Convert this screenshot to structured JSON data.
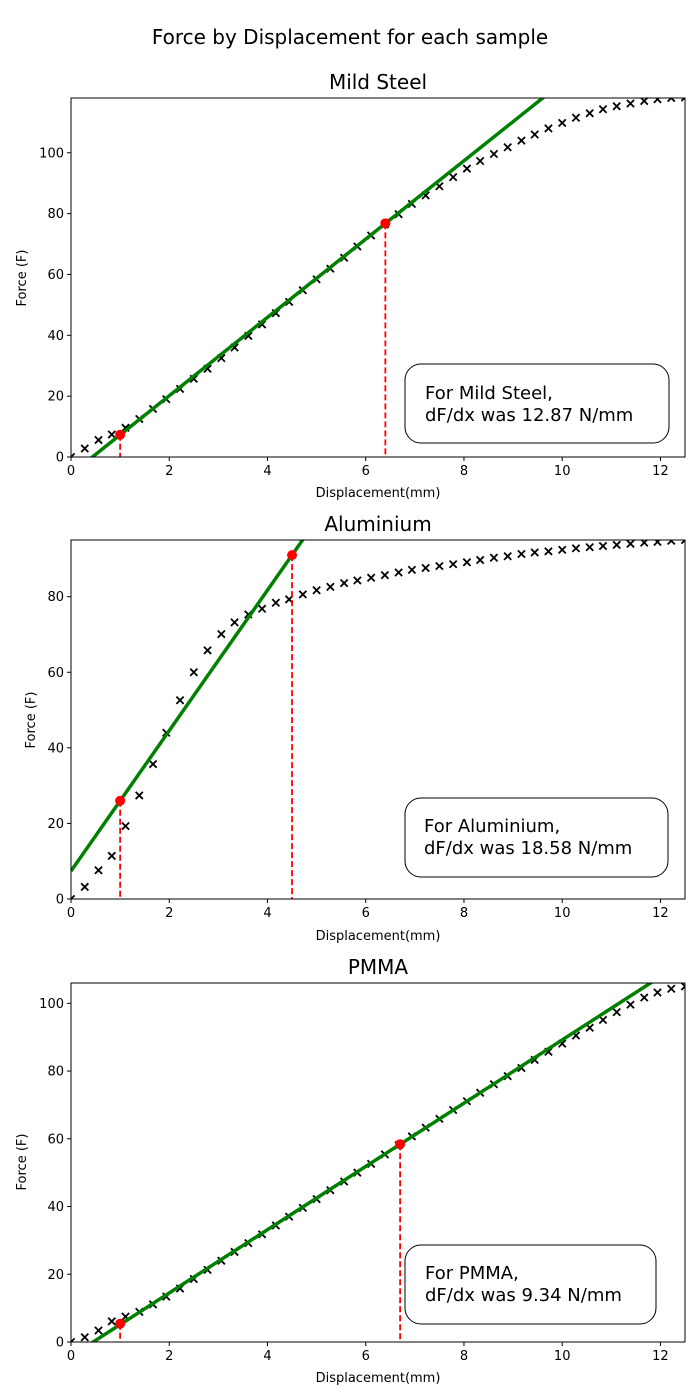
{
  "figure": {
    "suptitle": "Force by Displacement for each sample"
  },
  "chart_data": [
    {
      "type": "scatter",
      "title": "Mild Steel",
      "xlabel": "Displacement(mm)",
      "ylabel": "Force (F)",
      "xlim": [
        0,
        12.5
      ],
      "ylim": [
        0,
        118
      ],
      "xticks": [
        0,
        2,
        4,
        6,
        8,
        10,
        12
      ],
      "yticks": [
        0,
        20,
        40,
        60,
        80,
        100
      ],
      "grid": false,
      "annotation_lines": [
        "For Mild Steel,",
        "dF/dx was 12.87 N/mm"
      ],
      "colors": {
        "markers": "#000000",
        "fit_line": "#008000",
        "points": "#ff0000"
      },
      "series": [
        {
          "marker": "x",
          "x": [
            0.0,
            0.28,
            0.56,
            0.83,
            1.11,
            1.39,
            1.67,
            1.94,
            2.22,
            2.5,
            2.78,
            3.06,
            3.33,
            3.61,
            3.89,
            4.17,
            4.44,
            4.72,
            5.0,
            5.28,
            5.56,
            5.83,
            6.11,
            6.39,
            6.67,
            6.94,
            7.22,
            7.5,
            7.78,
            8.06,
            8.33,
            8.61,
            8.89,
            9.17,
            9.44,
            9.72,
            10.0,
            10.28,
            10.56,
            10.83,
            11.11,
            11.39,
            11.67,
            11.94,
            12.22,
            12.5
          ],
          "y": [
            0.0,
            2.8,
            5.6,
            7.4,
            9.6,
            12.5,
            15.8,
            19.0,
            22.4,
            25.7,
            29.0,
            32.5,
            36.0,
            39.8,
            43.6,
            47.3,
            51.0,
            54.8,
            58.4,
            61.9,
            65.5,
            69.2,
            72.8,
            76.4,
            79.8,
            83.2,
            86.0,
            89.0,
            92.0,
            94.8,
            97.3,
            99.6,
            101.8,
            104.0,
            106.0,
            108.0,
            109.8,
            111.5,
            113.0,
            114.3,
            115.3,
            116.2,
            117.0,
            117.6,
            118.0,
            118.2
          ]
        }
      ],
      "fit_line": {
        "slope": 12.87,
        "intercept": -5.6
      },
      "highlight_points": [
        {
          "x": 1.0,
          "y": 7.3
        },
        {
          "x": 6.4,
          "y": 76.8
        }
      ]
    },
    {
      "type": "scatter",
      "title": "Aluminium",
      "xlabel": "Displacement(mm)",
      "ylabel": "Force (F)",
      "xlim": [
        0,
        12.5
      ],
      "ylim": [
        0,
        95
      ],
      "xticks": [
        0,
        2,
        4,
        6,
        8,
        10,
        12
      ],
      "yticks": [
        0,
        20,
        40,
        60,
        80
      ],
      "grid": false,
      "annotation_lines": [
        "For Aluminium,",
        "dF/dx was 18.58 N/mm"
      ],
      "colors": {
        "markers": "#000000",
        "fit_line": "#008000",
        "points": "#ff0000"
      },
      "series": [
        {
          "marker": "x",
          "x": [
            0.0,
            0.28,
            0.56,
            0.83,
            1.11,
            1.39,
            1.67,
            1.94,
            2.22,
            2.5,
            2.78,
            3.06,
            3.33,
            3.61,
            3.89,
            4.17,
            4.44,
            4.72,
            5.0,
            5.28,
            5.56,
            5.83,
            6.11,
            6.39,
            6.67,
            6.94,
            7.22,
            7.5,
            7.78,
            8.06,
            8.33,
            8.61,
            8.89,
            9.17,
            9.44,
            9.72,
            10.0,
            10.28,
            10.56,
            10.83,
            11.11,
            11.39,
            11.67,
            11.94,
            12.22,
            12.5
          ],
          "y": [
            0.0,
            3.2,
            7.6,
            11.4,
            19.3,
            27.4,
            35.7,
            44.0,
            52.6,
            60.0,
            65.8,
            70.1,
            73.2,
            75.3,
            76.8,
            78.4,
            79.3,
            80.6,
            81.7,
            82.6,
            83.6,
            84.3,
            85.0,
            85.7,
            86.4,
            87.1,
            87.6,
            88.1,
            88.6,
            89.1,
            89.7,
            90.3,
            90.7,
            91.3,
            91.7,
            92.0,
            92.4,
            92.8,
            93.1,
            93.4,
            93.7,
            94.0,
            94.3,
            94.5,
            94.8,
            95.0
          ]
        }
      ],
      "fit_line": {
        "slope": 18.58,
        "intercept": 7.4
      },
      "highlight_points": [
        {
          "x": 1.0,
          "y": 26.0
        },
        {
          "x": 4.5,
          "y": 91.0
        }
      ]
    },
    {
      "type": "scatter",
      "title": "PMMA",
      "xlabel": "Displacement(mm)",
      "ylabel": "Force (F)",
      "xlim": [
        0,
        12.5
      ],
      "ylim": [
        0,
        106
      ],
      "xticks": [
        0,
        2,
        4,
        6,
        8,
        10,
        12
      ],
      "yticks": [
        0,
        20,
        40,
        60,
        80,
        100
      ],
      "grid": false,
      "annotation_lines": [
        "For PMMA,",
        "dF/dx was 9.34 N/mm"
      ],
      "colors": {
        "markers": "#000000",
        "fit_line": "#008000",
        "points": "#ff0000"
      },
      "series": [
        {
          "marker": "x",
          "x": [
            0.0,
            0.28,
            0.56,
            0.83,
            1.11,
            1.39,
            1.67,
            1.94,
            2.22,
            2.5,
            2.78,
            3.06,
            3.33,
            3.61,
            3.89,
            4.17,
            4.44,
            4.72,
            5.0,
            5.28,
            5.56,
            5.83,
            6.11,
            6.39,
            6.67,
            6.94,
            7.22,
            7.5,
            7.78,
            8.06,
            8.33,
            8.61,
            8.89,
            9.17,
            9.44,
            9.72,
            10.0,
            10.28,
            10.56,
            10.83,
            11.11,
            11.39,
            11.67,
            11.94,
            12.22,
            12.5
          ],
          "y": [
            0.0,
            1.4,
            3.4,
            6.1,
            7.5,
            8.9,
            11.1,
            13.4,
            15.8,
            18.6,
            21.3,
            24.0,
            26.6,
            29.2,
            31.8,
            34.4,
            37.0,
            39.6,
            42.2,
            44.8,
            47.4,
            50.0,
            52.6,
            55.4,
            58.1,
            60.7,
            63.3,
            65.9,
            68.5,
            71.1,
            73.6,
            76.1,
            78.5,
            80.9,
            83.3,
            85.7,
            88.1,
            90.5,
            92.8,
            95.1,
            97.4,
            99.6,
            101.7,
            103.2,
            104.3,
            105.0
          ]
        }
      ],
      "fit_line": {
        "slope": 9.34,
        "intercept": -4.2
      },
      "highlight_points": [
        {
          "x": 1.0,
          "y": 5.4
        },
        {
          "x": 6.7,
          "y": 58.4
        }
      ]
    }
  ]
}
